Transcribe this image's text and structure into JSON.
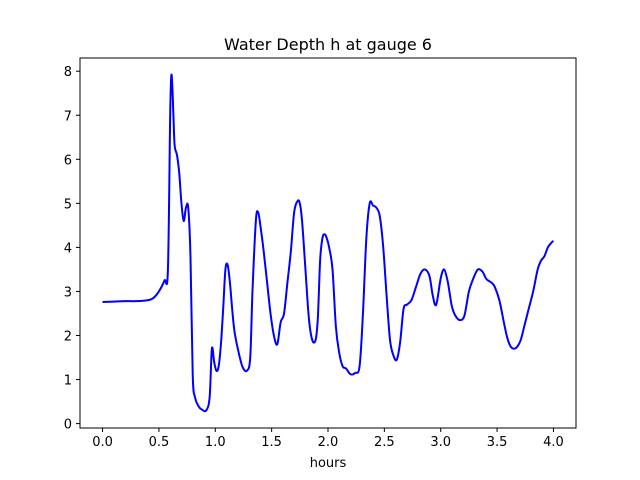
{
  "chart_data": {
    "type": "line",
    "title": "Water Depth h at gauge 6",
    "xlabel": "hours",
    "ylabel": "",
    "xlim": [
      -0.2,
      4.2
    ],
    "ylim": [
      -0.1,
      8.3
    ],
    "xticks": [
      0.0,
      0.5,
      1.0,
      1.5,
      2.0,
      2.5,
      3.0,
      3.5,
      4.0
    ],
    "xtick_labels": [
      "0.0",
      "0.5",
      "1.0",
      "1.5",
      "2.0",
      "2.5",
      "3.0",
      "3.5",
      "4.0"
    ],
    "yticks": [
      0,
      1,
      2,
      3,
      4,
      5,
      6,
      7,
      8
    ],
    "ytick_labels": [
      "0",
      "1",
      "2",
      "3",
      "4",
      "5",
      "6",
      "7",
      "8"
    ],
    "grid": false,
    "series": [
      {
        "color": "#0000ff",
        "x": [
          0.0,
          0.1,
          0.2,
          0.3,
          0.4,
          0.45,
          0.5,
          0.55,
          0.58,
          0.6,
          0.61,
          0.62,
          0.63,
          0.64,
          0.66,
          0.68,
          0.7,
          0.72,
          0.74,
          0.76,
          0.78,
          0.8,
          0.82,
          0.85,
          0.88,
          0.92,
          0.95,
          0.97,
          0.99,
          1.01,
          1.03,
          1.05,
          1.07,
          1.09,
          1.11,
          1.13,
          1.15,
          1.17,
          1.2,
          1.24,
          1.28,
          1.31,
          1.33,
          1.36,
          1.38,
          1.4,
          1.43,
          1.46,
          1.49,
          1.52,
          1.55,
          1.58,
          1.61,
          1.64,
          1.67,
          1.7,
          1.73,
          1.75,
          1.77,
          1.8,
          1.83,
          1.86,
          1.89,
          1.91,
          1.93,
          1.95,
          1.97,
          1.99,
          2.01,
          2.04,
          2.07,
          2.1,
          2.13,
          2.16,
          2.2,
          2.24,
          2.28,
          2.31,
          2.34,
          2.37,
          2.4,
          2.43,
          2.46,
          2.49,
          2.52,
          2.55,
          2.58,
          2.61,
          2.64,
          2.67,
          2.7,
          2.74,
          2.78,
          2.82,
          2.86,
          2.9,
          2.93,
          2.96,
          3.0,
          3.03,
          3.06,
          3.08,
          3.1,
          3.13,
          3.17,
          3.21,
          3.25,
          3.29,
          3.33,
          3.37,
          3.4,
          3.42,
          3.45,
          3.48,
          3.52,
          3.56,
          3.59,
          3.62,
          3.65,
          3.68,
          3.71,
          3.74,
          3.78,
          3.82,
          3.86,
          3.89,
          3.92,
          3.95,
          3.98,
          4.0
        ],
        "y": [
          2.76,
          2.77,
          2.78,
          2.78,
          2.8,
          2.85,
          3.0,
          3.25,
          3.5,
          7.0,
          7.9,
          7.6,
          6.9,
          6.3,
          6.1,
          5.7,
          5.0,
          4.6,
          4.9,
          4.9,
          3.8,
          1.1,
          0.6,
          0.4,
          0.32,
          0.3,
          0.6,
          1.7,
          1.4,
          1.2,
          1.3,
          1.8,
          2.6,
          3.5,
          3.6,
          3.2,
          2.6,
          2.1,
          1.7,
          1.3,
          1.2,
          1.5,
          3.0,
          4.6,
          4.8,
          4.5,
          3.9,
          3.2,
          2.5,
          2.0,
          1.8,
          2.3,
          2.5,
          3.2,
          3.9,
          4.8,
          5.05,
          5.0,
          4.6,
          3.5,
          2.4,
          1.9,
          1.9,
          2.4,
          3.7,
          4.2,
          4.3,
          4.2,
          4.0,
          3.5,
          2.2,
          1.6,
          1.3,
          1.25,
          1.12,
          1.15,
          1.3,
          2.5,
          4.2,
          5.0,
          4.95,
          4.9,
          4.7,
          4.0,
          2.9,
          1.9,
          1.55,
          1.45,
          1.85,
          2.6,
          2.7,
          2.8,
          3.1,
          3.4,
          3.5,
          3.35,
          2.9,
          2.7,
          3.3,
          3.5,
          3.25,
          2.95,
          2.65,
          2.45,
          2.35,
          2.45,
          3.0,
          3.3,
          3.5,
          3.45,
          3.3,
          3.25,
          3.2,
          3.1,
          2.8,
          2.3,
          1.95,
          1.75,
          1.7,
          1.75,
          1.9,
          2.2,
          2.6,
          3.0,
          3.5,
          3.7,
          3.8,
          4.0,
          4.1,
          4.15
        ]
      }
    ]
  }
}
